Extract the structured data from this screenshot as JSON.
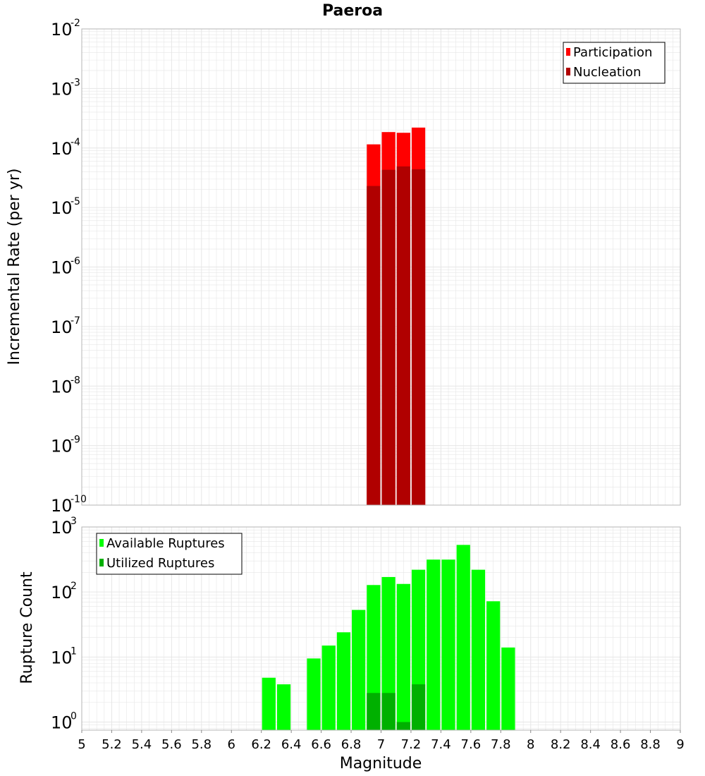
{
  "title": "Paeroa",
  "colors": {
    "participation": "#ff0000",
    "nucleation": "#b00000",
    "available": "#00ff00",
    "utilized": "#00b000",
    "grid": "#e6e6e6",
    "frame": "#b4b4b4"
  },
  "chart_data": [
    {
      "type": "bar",
      "name": "top",
      "ylabel": "Incremental Rate (per yr)",
      "yscale": "log",
      "ylim": [
        1e-10,
        0.01
      ],
      "xlim": [
        5,
        9
      ],
      "grid": true,
      "legend_position": "top-right",
      "y_ticks": [
        {
          "base": "10",
          "exp": "-2",
          "value": 0.01
        },
        {
          "base": "10",
          "exp": "-3",
          "value": 0.001
        },
        {
          "base": "10",
          "exp": "-4",
          "value": 0.0001
        },
        {
          "base": "10",
          "exp": "-5",
          "value": 1e-05
        },
        {
          "base": "10",
          "exp": "-6",
          "value": 1e-06
        },
        {
          "base": "10",
          "exp": "-7",
          "value": 1e-07
        },
        {
          "base": "10",
          "exp": "-8",
          "value": 1e-08
        },
        {
          "base": "10",
          "exp": "-9",
          "value": 1e-09
        },
        {
          "base": "10",
          "exp": "-10",
          "value": 1e-10
        }
      ],
      "series": [
        {
          "name": "Participation",
          "color_key": "participation",
          "bars": [
            {
              "x": 6.95,
              "y": 0.000115
            },
            {
              "x": 7.05,
              "y": 0.000185
            },
            {
              "x": 7.15,
              "y": 0.00018
            },
            {
              "x": 7.25,
              "y": 0.00022
            }
          ]
        },
        {
          "name": "Nucleation",
          "color_key": "nucleation",
          "bars": [
            {
              "x": 6.95,
              "y": 2.3e-05
            },
            {
              "x": 7.05,
              "y": 4.3e-05
            },
            {
              "x": 7.15,
              "y": 4.9e-05
            },
            {
              "x": 7.25,
              "y": 4.4e-05
            }
          ]
        }
      ]
    },
    {
      "type": "bar",
      "name": "bottom",
      "xlabel": "Magnitude",
      "ylabel": "Rupture Count",
      "yscale": "log",
      "ylim": [
        0.75,
        1000
      ],
      "xlim": [
        5,
        9
      ],
      "grid": true,
      "legend_position": "top-left",
      "y_ticks": [
        {
          "base": "10",
          "exp": "3",
          "value": 1000
        },
        {
          "base": "10",
          "exp": "2",
          "value": 100
        },
        {
          "base": "10",
          "exp": "1",
          "value": 10
        },
        {
          "base": "10",
          "exp": "0",
          "value": 1
        }
      ],
      "x_ticks": [
        "5",
        "5.2",
        "5.4",
        "5.6",
        "5.8",
        "6",
        "6.2",
        "6.4",
        "6.6",
        "6.8",
        "7",
        "7.2",
        "7.4",
        "7.6",
        "7.8",
        "8",
        "8.2",
        "8.4",
        "8.6",
        "8.8",
        "9"
      ],
      "series": [
        {
          "name": "Available Ruptures",
          "color_key": "available",
          "bars": [
            {
              "x": 6.25,
              "y": 4.8
            },
            {
              "x": 6.35,
              "y": 3.8
            },
            {
              "x": 6.55,
              "y": 9.5
            },
            {
              "x": 6.65,
              "y": 15
            },
            {
              "x": 6.75,
              "y": 24
            },
            {
              "x": 6.85,
              "y": 53
            },
            {
              "x": 6.95,
              "y": 128
            },
            {
              "x": 7.05,
              "y": 170
            },
            {
              "x": 7.15,
              "y": 133
            },
            {
              "x": 7.25,
              "y": 220
            },
            {
              "x": 7.35,
              "y": 315
            },
            {
              "x": 7.45,
              "y": 315
            },
            {
              "x": 7.55,
              "y": 530
            },
            {
              "x": 7.65,
              "y": 220
            },
            {
              "x": 7.75,
              "y": 72
            },
            {
              "x": 7.85,
              "y": 14
            }
          ]
        },
        {
          "name": "Utilized Ruptures",
          "color_key": "utilized",
          "bars": [
            {
              "x": 6.95,
              "y": 2.8
            },
            {
              "x": 7.05,
              "y": 2.8
            },
            {
              "x": 7.15,
              "y": 1
            },
            {
              "x": 7.25,
              "y": 3.8
            }
          ]
        }
      ]
    }
  ]
}
